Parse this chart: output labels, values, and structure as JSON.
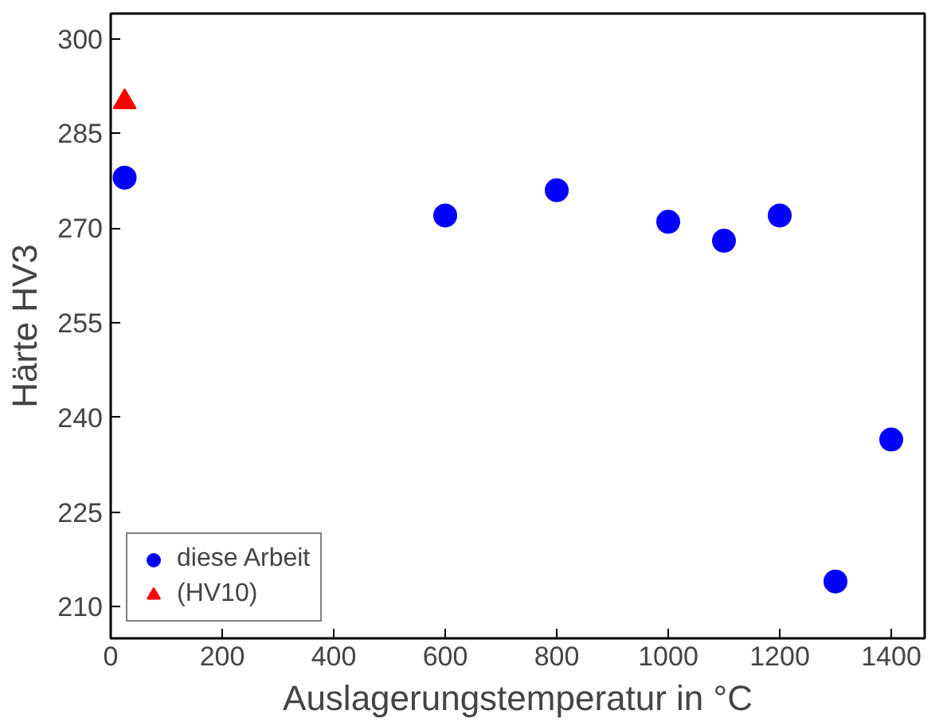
{
  "chart_data": {
    "type": "scatter",
    "xlabel": "Auslagerungstemperatur in °C",
    "ylabel": "Härte HV3",
    "xlim": [
      0,
      1460
    ],
    "ylim": [
      205,
      304
    ],
    "xticks": [
      0,
      200,
      400,
      600,
      800,
      1000,
      1200,
      1400
    ],
    "yticks": [
      210,
      225,
      240,
      255,
      270,
      285,
      300
    ],
    "grid": false,
    "legend": "bottom left",
    "series": [
      {
        "name": "diese Arbeit",
        "color": "#0000ff",
        "marker": "circle",
        "x": [
          25,
          600,
          800,
          1000,
          1100,
          1200,
          1300,
          1400
        ],
        "values": [
          278,
          272,
          276,
          271,
          268,
          272,
          214,
          236.5
        ]
      },
      {
        "name": "(HV10)",
        "color": "#ff0000",
        "marker": "triangle",
        "x": [
          25
        ],
        "values": [
          290
        ]
      }
    ]
  }
}
